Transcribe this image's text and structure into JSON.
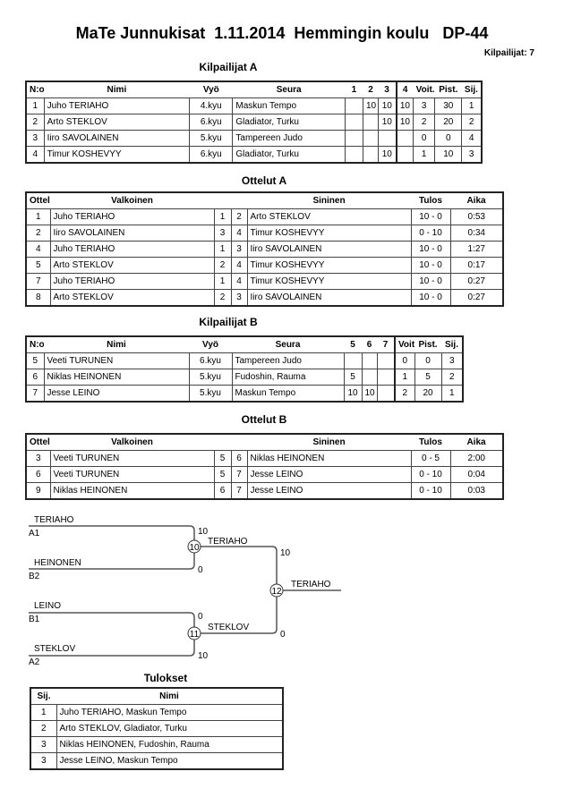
{
  "header": {
    "title": "MaTe Junnukisat  1.11.2014  Hemmingin koulu   DP-44",
    "competitor_count": "Kilpailijat: 7"
  },
  "pool_a": {
    "title": "Kilpailijat A",
    "headers": [
      "N:o",
      "Nimi",
      "Vyö",
      "Seura",
      "1",
      "2",
      "3",
      "4",
      "Voit.",
      "Pist.",
      "Sij."
    ],
    "rows": [
      [
        "1",
        "Juho TERIAHO",
        "4.kyu",
        "Maskun Tempo",
        "",
        "10",
        "10",
        "10",
        "3",
        "30",
        "1"
      ],
      [
        "2",
        "Arto STEKLOV",
        "6.kyu",
        "Gladiator, Turku",
        "",
        "",
        "10",
        "10",
        "2",
        "20",
        "2"
      ],
      [
        "3",
        "Iiro SAVOLAINEN",
        "5.kyu",
        "Tampereen Judo",
        "",
        "",
        "",
        "",
        "0",
        "0",
        "4"
      ],
      [
        "4",
        "Timur KOSHEVYY",
        "6.kyu",
        "Gladiator, Turku",
        "",
        "",
        "10",
        "",
        "1",
        "10",
        "3"
      ]
    ]
  },
  "matches_a": {
    "title": "Ottelut A",
    "headers": [
      "Ottelu",
      "Valkoinen",
      "",
      "",
      "Sininen",
      "Tulos",
      "Aika"
    ],
    "rows": [
      [
        "1",
        "Juho TERIAHO",
        "1",
        "2",
        "Arto STEKLOV",
        "10 - 0",
        "0:53"
      ],
      [
        "2",
        "Iiro SAVOLAINEN",
        "3",
        "4",
        "Timur KOSHEVYY",
        "0 - 10",
        "0:34"
      ],
      [
        "4",
        "Juho TERIAHO",
        "1",
        "3",
        "Iiro SAVOLAINEN",
        "10 - 0",
        "1:27"
      ],
      [
        "5",
        "Arto STEKLOV",
        "2",
        "4",
        "Timur KOSHEVYY",
        "10 - 0",
        "0:17"
      ],
      [
        "7",
        "Juho TERIAHO",
        "1",
        "4",
        "Timur KOSHEVYY",
        "10 - 0",
        "0:27"
      ],
      [
        "8",
        "Arto STEKLOV",
        "2",
        "3",
        "Iiro SAVOLAINEN",
        "10 - 0",
        "0:27"
      ]
    ]
  },
  "pool_b": {
    "title": "Kilpailijat B",
    "headers": [
      "N:o",
      "Nimi",
      "Vyö",
      "Seura",
      "5",
      "6",
      "7",
      "Voit.",
      "Pist.",
      "Sij."
    ],
    "rows": [
      [
        "5",
        "Veeti TURUNEN",
        "6.kyu",
        "Tampereen Judo",
        "",
        "",
        "",
        "0",
        "0",
        "3"
      ],
      [
        "6",
        "Niklas HEINONEN",
        "5.kyu",
        "Fudoshin, Rauma",
        "5",
        "",
        "",
        "1",
        "5",
        "2"
      ],
      [
        "7",
        "Jesse LEINO",
        "5.kyu",
        "Maskun Tempo",
        "10",
        "10",
        "",
        "2",
        "20",
        "1"
      ]
    ]
  },
  "matches_b": {
    "title": "Ottelut B",
    "headers": [
      "Ottelu",
      "Valkoinen",
      "",
      "",
      "Sininen",
      "Tulos",
      "Aika"
    ],
    "rows": [
      [
        "3",
        "Veeti TURUNEN",
        "5",
        "6",
        "Niklas HEINONEN",
        "0 - 5",
        "2:00"
      ],
      [
        "6",
        "Veeti TURUNEN",
        "5",
        "7",
        "Jesse LEINO",
        "0 - 10",
        "0:04"
      ],
      [
        "9",
        "Niklas HEINONEN",
        "6",
        "7",
        "Jesse LEINO",
        "0 - 10",
        "0:03"
      ]
    ]
  },
  "bracket": {
    "semi1": {
      "number": "10",
      "top_name": "TERIAHO",
      "top_seed": "A1",
      "top_score": "10",
      "bottom_name": "HEINONEN",
      "bottom_seed": "B2",
      "bottom_score": "0",
      "winner": "TERIAHO"
    },
    "semi2": {
      "number": "11",
      "top_name": "LEINO",
      "top_seed": "B1",
      "top_score": "0",
      "bottom_name": "STEKLOV",
      "bottom_seed": "A2",
      "bottom_score": "10",
      "winner": "STEKLOV"
    },
    "final": {
      "number": "12",
      "top_score": "10",
      "bottom_score": "0",
      "winner": "TERIAHO"
    }
  },
  "results": {
    "title": "Tulokset",
    "headers": [
      "Sij.",
      "Nimi"
    ],
    "rows": [
      [
        "1",
        "Juho TERIAHO, Maskun Tempo"
      ],
      [
        "2",
        "Arto STEKLOV, Gladiator, Turku"
      ],
      [
        "3",
        "Niklas HEINONEN, Fudoshin, Rauma"
      ],
      [
        "3",
        "Jesse LEINO, Maskun Tempo"
      ]
    ]
  }
}
